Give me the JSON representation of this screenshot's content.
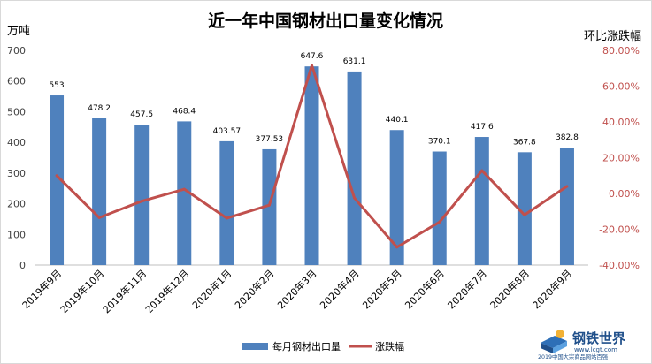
{
  "chart_data": {
    "type": "bar",
    "title": "近一年中国钢材出口量变化情况",
    "left_unit": "万吨",
    "right_unit": "环比涨跌幅",
    "categories": [
      "2019年9月",
      "2019年10月",
      "2019年11月",
      "2019年12月",
      "2020年1月",
      "2020年2月",
      "2020年3月",
      "2020年4月",
      "2020年5月",
      "2020年6月",
      "2020年7月",
      "2020年8月",
      "2020年9月"
    ],
    "series": [
      {
        "name": "每月钢材出口量",
        "kind": "bar",
        "axis": "left",
        "color": "#4f81bd",
        "values": [
          553,
          478.2,
          457.5,
          468.4,
          403.57,
          377.53,
          647.6,
          631.1,
          440.1,
          370.1,
          417.6,
          367.8,
          382.8
        ],
        "labels": [
          "553",
          "478.2",
          "457.5",
          "468.4",
          "403.57",
          "377.53",
          "647.6",
          "631.1",
          "440.1",
          "370.1",
          "417.6",
          "367.8",
          "382.8"
        ]
      },
      {
        "name": "涨跌幅",
        "kind": "line",
        "axis": "right",
        "color": "#c0504d",
        "values": [
          0.1,
          -0.135,
          -0.043,
          0.024,
          -0.138,
          -0.065,
          0.715,
          -0.025,
          -0.3,
          -0.16,
          0.128,
          -0.12,
          0.04
        ]
      }
    ],
    "ylim_left": [
      0,
      700
    ],
    "yticks_left": [
      0,
      100,
      200,
      300,
      400,
      500,
      600,
      700
    ],
    "ylim_right": [
      -0.4,
      0.8
    ],
    "yticks_right": [
      -0.4,
      -0.2,
      0,
      0.2,
      0.4,
      0.6,
      0.8
    ],
    "yticklabels_right": [
      "-40.00%",
      "-20.00%",
      "0.00%",
      "20.00%",
      "40.00%",
      "60.00%",
      "80.00%"
    ],
    "legend_position": "bottom",
    "grid": false
  },
  "watermark": {
    "brand": "钢铁世界",
    "url": "www.lcgt.com",
    "tagline": "2019中国大宗商品网站百强"
  }
}
